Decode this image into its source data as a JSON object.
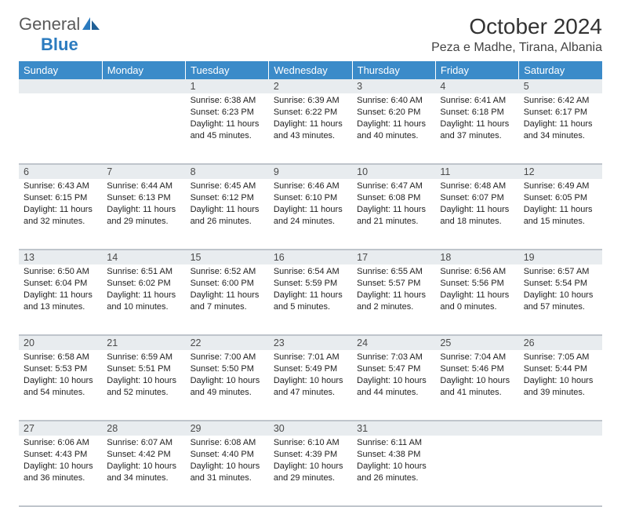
{
  "logo": {
    "text1": "General",
    "text2": "Blue",
    "text_color": "#5a5a5a",
    "accent_color": "#2b7bbf"
  },
  "header": {
    "title": "October 2024",
    "location": "Peza e Madhe, Tirana, Albania",
    "title_fontsize": 28,
    "location_fontsize": 16
  },
  "calendar": {
    "header_bg": "#3b8bc9",
    "header_fg": "#ffffff",
    "daynum_bg": "#e8ecef",
    "border_color": "#bfc5cc",
    "day_headers": [
      "Sunday",
      "Monday",
      "Tuesday",
      "Wednesday",
      "Thursday",
      "Friday",
      "Saturday"
    ],
    "weeks": [
      [
        null,
        null,
        {
          "n": "1",
          "sunrise": "Sunrise: 6:38 AM",
          "sunset": "Sunset: 6:23 PM",
          "day1": "Daylight: 11 hours",
          "day2": "and 45 minutes."
        },
        {
          "n": "2",
          "sunrise": "Sunrise: 6:39 AM",
          "sunset": "Sunset: 6:22 PM",
          "day1": "Daylight: 11 hours",
          "day2": "and 43 minutes."
        },
        {
          "n": "3",
          "sunrise": "Sunrise: 6:40 AM",
          "sunset": "Sunset: 6:20 PM",
          "day1": "Daylight: 11 hours",
          "day2": "and 40 minutes."
        },
        {
          "n": "4",
          "sunrise": "Sunrise: 6:41 AM",
          "sunset": "Sunset: 6:18 PM",
          "day1": "Daylight: 11 hours",
          "day2": "and 37 minutes."
        },
        {
          "n": "5",
          "sunrise": "Sunrise: 6:42 AM",
          "sunset": "Sunset: 6:17 PM",
          "day1": "Daylight: 11 hours",
          "day2": "and 34 minutes."
        }
      ],
      [
        {
          "n": "6",
          "sunrise": "Sunrise: 6:43 AM",
          "sunset": "Sunset: 6:15 PM",
          "day1": "Daylight: 11 hours",
          "day2": "and 32 minutes."
        },
        {
          "n": "7",
          "sunrise": "Sunrise: 6:44 AM",
          "sunset": "Sunset: 6:13 PM",
          "day1": "Daylight: 11 hours",
          "day2": "and 29 minutes."
        },
        {
          "n": "8",
          "sunrise": "Sunrise: 6:45 AM",
          "sunset": "Sunset: 6:12 PM",
          "day1": "Daylight: 11 hours",
          "day2": "and 26 minutes."
        },
        {
          "n": "9",
          "sunrise": "Sunrise: 6:46 AM",
          "sunset": "Sunset: 6:10 PM",
          "day1": "Daylight: 11 hours",
          "day2": "and 24 minutes."
        },
        {
          "n": "10",
          "sunrise": "Sunrise: 6:47 AM",
          "sunset": "Sunset: 6:08 PM",
          "day1": "Daylight: 11 hours",
          "day2": "and 21 minutes."
        },
        {
          "n": "11",
          "sunrise": "Sunrise: 6:48 AM",
          "sunset": "Sunset: 6:07 PM",
          "day1": "Daylight: 11 hours",
          "day2": "and 18 minutes."
        },
        {
          "n": "12",
          "sunrise": "Sunrise: 6:49 AM",
          "sunset": "Sunset: 6:05 PM",
          "day1": "Daylight: 11 hours",
          "day2": "and 15 minutes."
        }
      ],
      [
        {
          "n": "13",
          "sunrise": "Sunrise: 6:50 AM",
          "sunset": "Sunset: 6:04 PM",
          "day1": "Daylight: 11 hours",
          "day2": "and 13 minutes."
        },
        {
          "n": "14",
          "sunrise": "Sunrise: 6:51 AM",
          "sunset": "Sunset: 6:02 PM",
          "day1": "Daylight: 11 hours",
          "day2": "and 10 minutes."
        },
        {
          "n": "15",
          "sunrise": "Sunrise: 6:52 AM",
          "sunset": "Sunset: 6:00 PM",
          "day1": "Daylight: 11 hours",
          "day2": "and 7 minutes."
        },
        {
          "n": "16",
          "sunrise": "Sunrise: 6:54 AM",
          "sunset": "Sunset: 5:59 PM",
          "day1": "Daylight: 11 hours",
          "day2": "and 5 minutes."
        },
        {
          "n": "17",
          "sunrise": "Sunrise: 6:55 AM",
          "sunset": "Sunset: 5:57 PM",
          "day1": "Daylight: 11 hours",
          "day2": "and 2 minutes."
        },
        {
          "n": "18",
          "sunrise": "Sunrise: 6:56 AM",
          "sunset": "Sunset: 5:56 PM",
          "day1": "Daylight: 11 hours",
          "day2": "and 0 minutes."
        },
        {
          "n": "19",
          "sunrise": "Sunrise: 6:57 AM",
          "sunset": "Sunset: 5:54 PM",
          "day1": "Daylight: 10 hours",
          "day2": "and 57 minutes."
        }
      ],
      [
        {
          "n": "20",
          "sunrise": "Sunrise: 6:58 AM",
          "sunset": "Sunset: 5:53 PM",
          "day1": "Daylight: 10 hours",
          "day2": "and 54 minutes."
        },
        {
          "n": "21",
          "sunrise": "Sunrise: 6:59 AM",
          "sunset": "Sunset: 5:51 PM",
          "day1": "Daylight: 10 hours",
          "day2": "and 52 minutes."
        },
        {
          "n": "22",
          "sunrise": "Sunrise: 7:00 AM",
          "sunset": "Sunset: 5:50 PM",
          "day1": "Daylight: 10 hours",
          "day2": "and 49 minutes."
        },
        {
          "n": "23",
          "sunrise": "Sunrise: 7:01 AM",
          "sunset": "Sunset: 5:49 PM",
          "day1": "Daylight: 10 hours",
          "day2": "and 47 minutes."
        },
        {
          "n": "24",
          "sunrise": "Sunrise: 7:03 AM",
          "sunset": "Sunset: 5:47 PM",
          "day1": "Daylight: 10 hours",
          "day2": "and 44 minutes."
        },
        {
          "n": "25",
          "sunrise": "Sunrise: 7:04 AM",
          "sunset": "Sunset: 5:46 PM",
          "day1": "Daylight: 10 hours",
          "day2": "and 41 minutes."
        },
        {
          "n": "26",
          "sunrise": "Sunrise: 7:05 AM",
          "sunset": "Sunset: 5:44 PM",
          "day1": "Daylight: 10 hours",
          "day2": "and 39 minutes."
        }
      ],
      [
        {
          "n": "27",
          "sunrise": "Sunrise: 6:06 AM",
          "sunset": "Sunset: 4:43 PM",
          "day1": "Daylight: 10 hours",
          "day2": "and 36 minutes."
        },
        {
          "n": "28",
          "sunrise": "Sunrise: 6:07 AM",
          "sunset": "Sunset: 4:42 PM",
          "day1": "Daylight: 10 hours",
          "day2": "and 34 minutes."
        },
        {
          "n": "29",
          "sunrise": "Sunrise: 6:08 AM",
          "sunset": "Sunset: 4:40 PM",
          "day1": "Daylight: 10 hours",
          "day2": "and 31 minutes."
        },
        {
          "n": "30",
          "sunrise": "Sunrise: 6:10 AM",
          "sunset": "Sunset: 4:39 PM",
          "day1": "Daylight: 10 hours",
          "day2": "and 29 minutes."
        },
        {
          "n": "31",
          "sunrise": "Sunrise: 6:11 AM",
          "sunset": "Sunset: 4:38 PM",
          "day1": "Daylight: 10 hours",
          "day2": "and 26 minutes."
        },
        null,
        null
      ]
    ]
  }
}
